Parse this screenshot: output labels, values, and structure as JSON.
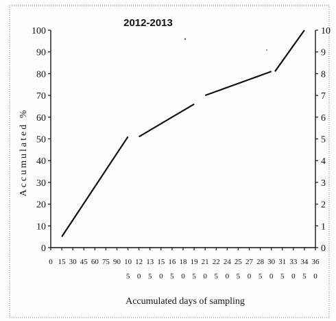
{
  "chart_data": {
    "type": "line",
    "title": "2012-2013",
    "xlabel": "Accumulated days of sampling",
    "ylabel": "Accumulated %",
    "ylim": [
      0,
      100
    ],
    "y_ticks": [
      0,
      10,
      20,
      30,
      40,
      50,
      60,
      70,
      80,
      90,
      100
    ],
    "y2lim": [
      0,
      10
    ],
    "y2_ticks": [
      0,
      1,
      2,
      3,
      4,
      5,
      6,
      7,
      8,
      9,
      10
    ],
    "xlim": [
      0,
      360
    ],
    "x_tick_labels_top": [
      "0",
      "15",
      "30",
      "45",
      "60",
      "75",
      "90",
      "10",
      "12",
      "13",
      "15",
      "16",
      "18",
      "19",
      "21",
      "22",
      "24",
      "25",
      "27",
      "28",
      "30",
      "31",
      "33",
      "34",
      "36"
    ],
    "x_tick_labels_bottom": [
      "",
      "",
      "",
      "",
      "",
      "",
      "",
      "5",
      "0",
      "5",
      "0",
      "5",
      "0",
      "5",
      "0",
      "5",
      "0",
      "5",
      "0",
      "5",
      "0",
      "5",
      "0",
      "5",
      "0"
    ],
    "x_tick_values": [
      0,
      15,
      30,
      45,
      60,
      75,
      90,
      105,
      120,
      135,
      150,
      165,
      180,
      195,
      210,
      225,
      240,
      255,
      270,
      285,
      300,
      315,
      330,
      345,
      360
    ],
    "grid": false,
    "series": [
      {
        "segments": [
          [
            [
              15,
              5
            ],
            [
              105,
              51
            ]
          ],
          [
            [
              120,
              51
            ],
            [
              195,
              66
            ]
          ],
          [
            [
              210,
              70
            ],
            [
              300,
              81
            ]
          ],
          [
            [
              305,
              81
            ],
            [
              345,
              100
            ]
          ]
        ]
      }
    ]
  }
}
